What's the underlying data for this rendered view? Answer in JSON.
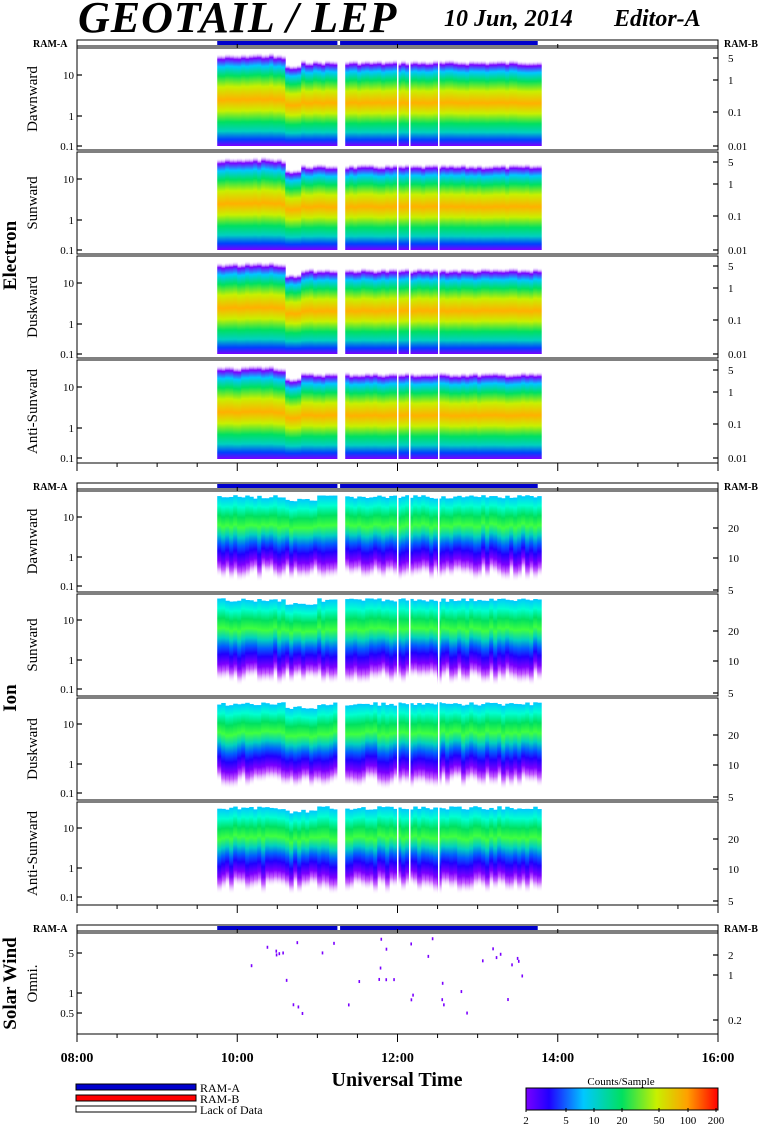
{
  "header": {
    "title": "GEOTAIL / LEP",
    "date": "10 Jun, 2014",
    "editor": "Editor-A"
  },
  "colors": {
    "ram_a": "#0000cc",
    "ram_b": "#ff0000",
    "lack_of_data": "#ffffff"
  },
  "legend": {
    "items": [
      {
        "label": "RAM-A",
        "color": "#0000cc"
      },
      {
        "label": "RAM-B",
        "color": "#ff0000"
      },
      {
        "label": "Lack of Data",
        "color": "#ffffff"
      }
    ],
    "colorbar_title": "Counts/Sample",
    "colorbar_ticks": [
      "2",
      "5",
      "10",
      "20",
      "50",
      "100",
      "200"
    ]
  },
  "chart_data": {
    "type": "heatmap",
    "xlabel": "Universal Time",
    "x_ticks": [
      "08:00",
      "10:00",
      "12:00",
      "14:00",
      "16:00"
    ],
    "xlim": [
      "08:00",
      "16:00"
    ],
    "data_coverage": [
      "09:45",
      "13:45"
    ],
    "data_gaps": [
      "11:15",
      "11:17"
    ],
    "groups": [
      {
        "name": "Electron",
        "mode_left": "RAM-A",
        "mode_right": "RAM-B",
        "left_ticks": [
          "10",
          "1",
          "0.1"
        ],
        "right_ticks": [
          "5",
          "1",
          "0.1",
          "0.01"
        ],
        "panels": [
          "Dawnward",
          "Sunward",
          "Duskward",
          "Anti-Sunward"
        ]
      },
      {
        "name": "Ion",
        "mode_left": "RAM-A",
        "mode_right": "RAM-B",
        "left_ticks": [
          "10",
          "1",
          "0.1"
        ],
        "right_ticks": [
          "20",
          "10",
          "5"
        ],
        "panels": [
          "Dawnward",
          "Sunward",
          "Duskward",
          "Anti-Sunward"
        ]
      },
      {
        "name": "Solar Wind",
        "mode_left": "RAM-A",
        "mode_right": "RAM-B",
        "left_ticks": [
          "5",
          "1",
          "0.5"
        ],
        "right_ticks": [
          "2",
          "1",
          "0.2"
        ],
        "panels": [
          "Omni."
        ]
      }
    ]
  }
}
